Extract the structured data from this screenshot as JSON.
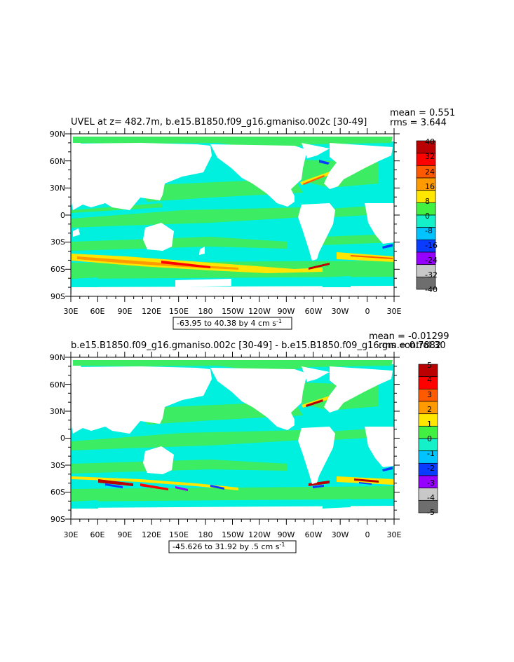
{
  "panels": [
    {
      "title": "UVEL at z= 482.7m, b.e15.B1850.f09_g16.gmaniso.002c [30-49]",
      "mean_text": "mean = 0.551",
      "rms_text": "rms = 3.644",
      "range_text": "-63.95 to 40.38 by 4 cm s",
      "range_exp": "-1",
      "colorbar_labels": [
        "40",
        "32",
        "24",
        "16",
        "8",
        "0",
        "-8",
        "-16",
        "-24",
        "-32",
        "-40"
      ]
    },
    {
      "title": "b.e15.B1850.f09_g16.gmaniso.002c [30-49] - b.e15.B1850.f09_g16.gm.control.30",
      "mean_text": "mean = -0.01299",
      "rms_text": "rms = 0.7882",
      "range_text": "-45.626 to 31.92 by .5 cm s",
      "range_exp": "-1",
      "colorbar_labels": [
        "5",
        "4",
        "3",
        "2",
        "1",
        "0",
        "-1",
        "-2",
        "-3",
        "-4",
        "-5"
      ]
    }
  ],
  "lat_labels": [
    "90N",
    "60N",
    "30N",
    "0",
    "30S",
    "60S",
    "90S"
  ],
  "lon_labels": [
    "30E",
    "60E",
    "90E",
    "120E",
    "150E",
    "180",
    "150W",
    "120W",
    "90W",
    "60W",
    "30W",
    "0",
    "30E"
  ],
  "colors": {
    "palette": [
      "#ba0000",
      "#ff0000",
      "#ff5a00",
      "#ff9b00",
      "#ffe600",
      "#42f042",
      "#14f0c8",
      "#00c3ff",
      "#0a3cff",
      "#9600ff",
      "#c8c8c8",
      "#6e6e6e"
    ],
    "ocean_main": "#00f0e0",
    "ocean_green": "#3ced64"
  }
}
